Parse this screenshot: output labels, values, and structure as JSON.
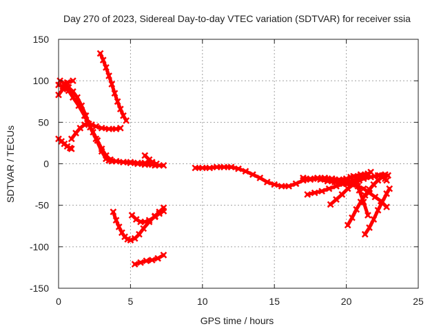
{
  "chart_data": {
    "type": "line",
    "title": "Day 270 of 2023, Sidereal Day-to-day VTEC variation (SDTVAR) for receiver ssia",
    "xlabel": "GPS time / hours",
    "ylabel": "SDTVAR / TECUs",
    "xlim": [
      0,
      25
    ],
    "ylim": [
      -150,
      150
    ],
    "xticks": [
      0,
      5,
      10,
      15,
      20,
      25
    ],
    "yticks": [
      -150,
      -100,
      -50,
      0,
      50,
      100,
      150
    ],
    "grid": true,
    "color": "#ff0000",
    "series": [
      {
        "name": "arc1",
        "x": [
          0.0,
          0.3,
          0.7,
          1.0,
          1.4,
          1.8,
          2.2,
          2.6,
          3.0,
          3.3,
          3.5,
          3.7,
          4.0,
          4.5,
          5.0,
          5.5,
          6.0,
          6.5,
          6.8
        ],
        "y": [
          95,
          93,
          88,
          80,
          70,
          58,
          44,
          30,
          15,
          6,
          4,
          3,
          3,
          2,
          2,
          1,
          1,
          1,
          0
        ]
      },
      {
        "name": "arc2",
        "x": [
          0.0,
          0.3,
          0.6,
          1.0
        ],
        "y": [
          83,
          90,
          98,
          100
        ]
      },
      {
        "name": "arc3",
        "x": [
          0.1,
          0.4,
          0.7,
          1.0,
          1.3,
          1.6,
          1.9,
          2.1,
          2.4,
          2.7,
          3.0,
          3.3,
          3.6,
          4.0,
          4.5,
          5.0,
          5.5,
          6.0,
          6.5,
          7.0,
          7.3
        ],
        "y": [
          100,
          97,
          92,
          87,
          80,
          70,
          58,
          48,
          38,
          28,
          18,
          10,
          5,
          3,
          2,
          1,
          0,
          -1,
          -1,
          -2,
          -2
        ]
      },
      {
        "name": "arc4",
        "x": [
          0.0,
          0.2,
          0.4,
          0.6,
          0.8,
          0.9
        ],
        "y": [
          30,
          27,
          24,
          21,
          19,
          18
        ]
      },
      {
        "name": "arc5",
        "x": [
          0.9,
          1.2,
          1.5,
          1.8,
          2.0,
          2.3,
          2.6,
          3.0,
          3.5,
          4.0,
          4.3
        ],
        "y": [
          30,
          37,
          43,
          47,
          49,
          47,
          45,
          43,
          42,
          42,
          43
        ]
      },
      {
        "name": "arc6",
        "x": [
          2.9,
          3.1,
          3.3,
          3.5,
          3.7,
          3.9,
          4.1,
          4.3,
          4.5,
          4.7
        ],
        "y": [
          133,
          125,
          116,
          106,
          96,
          85,
          75,
          66,
          58,
          52
        ]
      },
      {
        "name": "arc7",
        "x": [
          3.8,
          4.0,
          4.2,
          4.4,
          4.6,
          4.8,
          5.0,
          5.3,
          5.6,
          5.9,
          6.3,
          6.7,
          7.0,
          7.3
        ],
        "y": [
          -58,
          -68,
          -76,
          -83,
          -88,
          -91,
          -92,
          -90,
          -85,
          -78,
          -70,
          -63,
          -58,
          -53
        ]
      },
      {
        "name": "arc8",
        "x": [
          5.1,
          5.4,
          5.7,
          6.0,
          6.3,
          6.7,
          7.0,
          7.3
        ],
        "y": [
          -62,
          -67,
          -70,
          -70,
          -68,
          -64,
          -60,
          -57
        ]
      },
      {
        "name": "arc9",
        "x": [
          5.3,
          5.7,
          6.1,
          6.5,
          6.9,
          7.3
        ],
        "y": [
          -121,
          -119,
          -117,
          -116,
          -114,
          -110
        ]
      },
      {
        "name": "arc10",
        "x": [
          6.0,
          6.3,
          6.5,
          6.7
        ],
        "y": [
          10,
          5,
          2,
          -2
        ]
      },
      {
        "name": "arc11",
        "x": [
          9.5,
          10.0,
          10.5,
          11.0,
          11.5,
          12.0,
          12.5,
          13.0,
          13.5,
          14.0,
          14.5,
          15.0,
          15.5,
          16.0,
          16.5,
          17.0,
          17.5,
          18.0,
          18.5,
          19.0,
          19.5,
          19.8
        ],
        "y": [
          -5,
          -5,
          -5,
          -4,
          -4,
          -4,
          -6,
          -9,
          -13,
          -17,
          -22,
          -25,
          -27,
          -27,
          -24,
          -20,
          -19,
          -18,
          -18,
          -18,
          -20,
          -22
        ]
      },
      {
        "name": "arc12",
        "x": [
          17.0,
          17.5,
          18.0,
          18.5,
          19.0,
          19.5,
          20.0,
          20.5,
          21.0,
          21.5
        ],
        "y": [
          -17,
          -18,
          -17,
          -17,
          -18,
          -19,
          -18,
          -15,
          -13,
          -12
        ]
      },
      {
        "name": "arc13",
        "x": [
          17.3,
          17.8,
          18.3,
          18.8,
          19.3,
          19.8,
          20.3,
          20.8,
          21.3
        ],
        "y": [
          -37,
          -35,
          -33,
          -30,
          -27,
          -24,
          -21,
          -18,
          -15
        ]
      },
      {
        "name": "arc14",
        "x": [
          18.2,
          18.7,
          19.2,
          19.7,
          20.2,
          20.7,
          21.2,
          21.7,
          22.2,
          22.7
        ],
        "y": [
          -19,
          -21,
          -22,
          -24,
          -23,
          -21,
          -18,
          -16,
          -14,
          -13
        ]
      },
      {
        "name": "arc15",
        "x": [
          18.9,
          19.3,
          19.7,
          20.1,
          20.5,
          20.9,
          21.3,
          21.7
        ],
        "y": [
          -49,
          -43,
          -37,
          -30,
          -25,
          -20,
          -15,
          -10
        ]
      },
      {
        "name": "arc16",
        "x": [
          19.5,
          20.0,
          20.4,
          20.8,
          21.2,
          21.6,
          22.0,
          22.4,
          22.8
        ],
        "y": [
          -22,
          -24,
          -25,
          -27,
          -30,
          -35,
          -40,
          -45,
          -52
        ]
      },
      {
        "name": "arc17",
        "x": [
          20.1,
          20.4,
          20.7,
          21.0,
          21.3,
          21.6,
          21.9,
          22.2,
          22.5,
          22.9
        ],
        "y": [
          -74,
          -65,
          -55,
          -46,
          -38,
          -31,
          -25,
          -20,
          -16,
          -14
        ]
      },
      {
        "name": "arc18",
        "x": [
          20.3,
          20.6,
          20.9,
          21.2,
          21.5
        ],
        "y": [
          -16,
          -22,
          -32,
          -46,
          -62
        ]
      },
      {
        "name": "arc19",
        "x": [
          21.3,
          21.6,
          21.9,
          22.2,
          22.5,
          22.8,
          23.0
        ],
        "y": [
          -85,
          -77,
          -67,
          -56,
          -46,
          -36,
          -30
        ]
      },
      {
        "name": "arc20",
        "x": [
          22.3,
          22.5,
          22.7,
          22.8
        ],
        "y": [
          -14,
          -16,
          -18,
          -20
        ]
      }
    ]
  }
}
